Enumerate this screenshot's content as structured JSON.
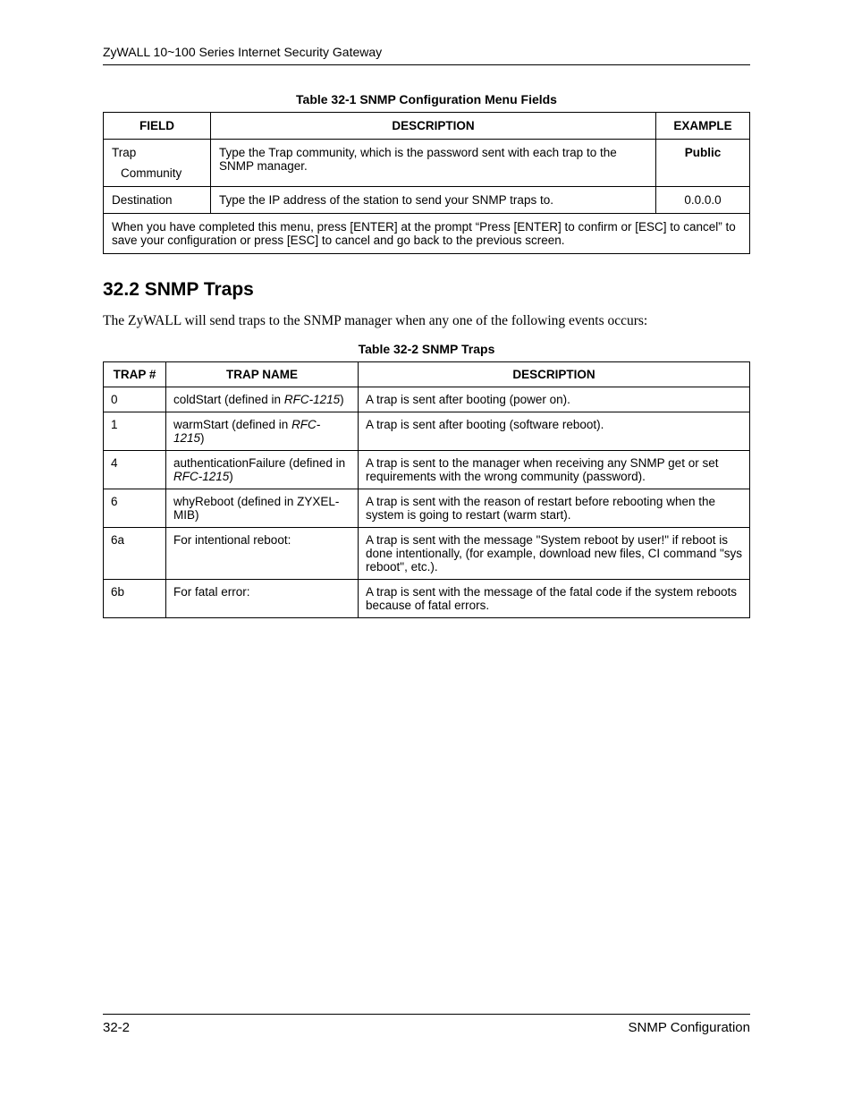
{
  "header": {
    "title": "ZyWALL 10~100 Series Internet Security Gateway"
  },
  "table1": {
    "caption": "Table 32-1 SNMP Configuration Menu Fields",
    "headers": {
      "c1": "FIELD",
      "c2": "DESCRIPTION",
      "c3": "EXAMPLE"
    },
    "rows": [
      {
        "field_l1": "Trap",
        "field_l2": "Community",
        "desc": "Type the Trap community, which is the password sent with each trap to the SNMP manager.",
        "example": "Public",
        "example_bold": true
      },
      {
        "field": "Destination",
        "desc": "Type the IP address of the station to send your SNMP traps to.",
        "example": "0.0.0.0",
        "example_bold": false
      }
    ],
    "footnote": "When you have completed this menu, press [ENTER] at the prompt “Press [ENTER] to confirm or [ESC] to cancel” to save your configuration or press [ESC] to cancel and go back to the previous screen."
  },
  "section": {
    "heading": "32.2  SNMP Traps",
    "intro": "The ZyWALL will send traps to the SNMP manager when any one of the following events occurs:"
  },
  "table2": {
    "caption": "Table 32-2 SNMP Traps",
    "headers": {
      "c1": "TRAP #",
      "c2": "TRAP NAME",
      "c3": "DESCRIPTION"
    },
    "rows": [
      {
        "num": "0",
        "name_pre": "coldStart (defined in ",
        "name_it": "RFC-1215",
        "name_post": ")",
        "desc": "A trap is sent after booting (power on)."
      },
      {
        "num": "1",
        "name_pre": "warmStart (defined in ",
        "name_it": "RFC-1215",
        "name_post": ")",
        "desc": "A trap is sent after booting (software reboot)."
      },
      {
        "num": "4",
        "name_pre": "authenticationFailure (defined in ",
        "name_it": "RFC-1215",
        "name_post": ")",
        "desc": "A trap is sent to the manager when receiving any SNMP get or set requirements with the wrong community (password)."
      },
      {
        "num": "6",
        "name_pre": "whyReboot (defined in ZYXEL-MIB)",
        "name_it": "",
        "name_post": "",
        "desc": "A trap is sent with the reason of restart before rebooting when the system is going to restart (warm start)."
      },
      {
        "num": "6a",
        "name_pre": "For intentional reboot:",
        "name_it": "",
        "name_post": "",
        "desc": "A trap is sent with the message \"System reboot by user!\" if reboot is done intentionally, (for example, download new files, CI command \"sys reboot\", etc.)."
      },
      {
        "num": "6b",
        "name_pre": "For fatal error:",
        "name_it": "",
        "name_post": "",
        "desc": "A trap is sent with the message of the fatal code if the system reboots because of fatal errors."
      }
    ]
  },
  "footer": {
    "left": "32-2",
    "right": "SNMP Configuration"
  },
  "colors": {
    "text": "#000000",
    "bg": "#ffffff",
    "border": "#000000"
  }
}
